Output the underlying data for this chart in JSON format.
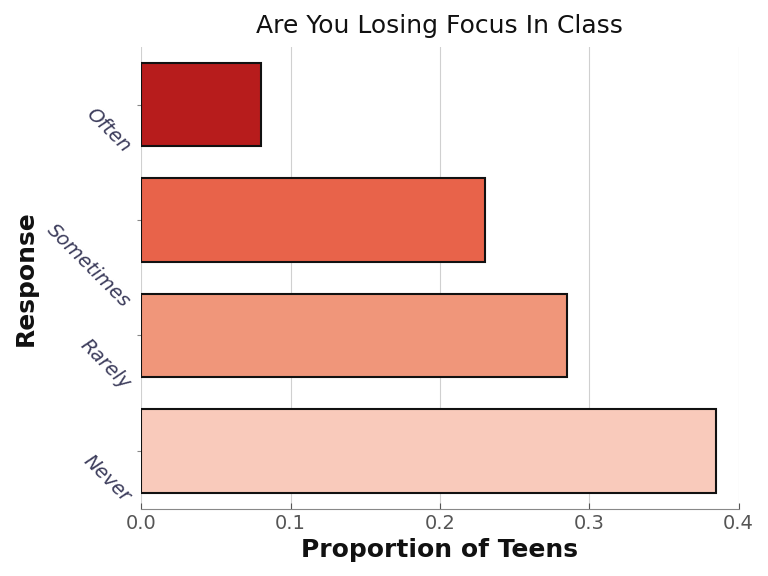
{
  "categories": [
    "Never",
    "Rarely",
    "Sometimes",
    "Often"
  ],
  "values": [
    0.385,
    0.285,
    0.23,
    0.08
  ],
  "bar_colors": [
    "#F9CABB",
    "#F0967A",
    "#E8634A",
    "#B71C1C"
  ],
  "bar_edgecolor": "#111111",
  "title": "Are You Losing Focus In Class",
  "xlabel": "Proportion of Teens",
  "ylabel": "Response",
  "xlim": [
    0,
    0.4
  ],
  "xticks": [
    0.0,
    0.1,
    0.2,
    0.3,
    0.4
  ],
  "background_color": "#ffffff",
  "title_fontsize": 18,
  "axis_label_fontsize": 18,
  "tick_label_fontsize": 14,
  "ytick_rotation": -45,
  "ytick_color": "#3d3d5c",
  "xtick_color": "#555555",
  "bar_height": 0.72,
  "grid_color": "#d0d0d0",
  "grid_linewidth": 0.8
}
